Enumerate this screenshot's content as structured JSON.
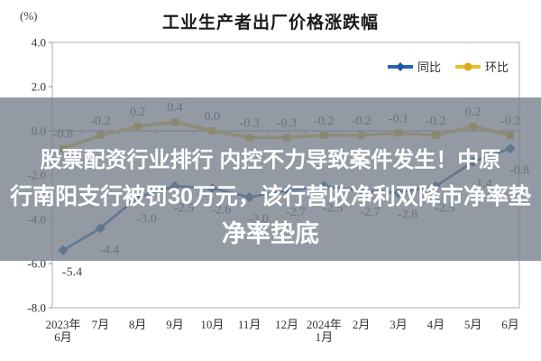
{
  "chart": {
    "title": "工业生产者出厂价格涨跌幅",
    "unit_label": "(%)"
  },
  "chart_data": {
    "type": "line",
    "title": "工业生产者出厂价格涨跌幅",
    "ylabel": "(%)",
    "ylim": [
      -8.0,
      4.0
    ],
    "yticks": [
      4.0,
      2.0,
      0.0,
      -2.0,
      -4.0,
      -6.0,
      -8.0
    ],
    "grid": false,
    "legend_position": "top-right",
    "categories": [
      "2023年6月",
      "7月",
      "8月",
      "9月",
      "10月",
      "11月",
      "12月",
      "2024年1月",
      "2月",
      "3月",
      "4月",
      "5月",
      "6月"
    ],
    "series": [
      {
        "name": "环比",
        "color": "#e9c12e",
        "marker_color": "#d8ab1c",
        "marker": "square",
        "line_width": 3.5,
        "label_position": "above",
        "values": [
          -0.8,
          -0.2,
          0.2,
          0.4,
          0.0,
          -0.3,
          -0.3,
          -0.2,
          -0.2,
          -0.1,
          -0.2,
          0.2,
          -0.2
        ]
      },
      {
        "name": "同比",
        "color": "#2a67ad",
        "marker_color": "#1f5a9e",
        "marker": "diamond",
        "line_width": 2.8,
        "label_position": "below",
        "values": [
          -5.4,
          -4.4,
          -3.0,
          -2.5,
          -2.6,
          -3.0,
          -2.7,
          -2.5,
          -2.7,
          -2.8,
          -2.5,
          -1.4,
          -0.8
        ]
      }
    ],
    "legend": [
      {
        "name": "同比",
        "color": "#2a67ad",
        "marker": "diamond"
      },
      {
        "name": "环比",
        "color": "#e9c12e",
        "marker": "circle"
      }
    ]
  },
  "overlay": {
    "bg_color": "rgba(116,126,139,0.78)",
    "text_color": "#ffffff",
    "lines": [
      "股票配资行业排行 内控不力导致案件发生！中原",
      "行南阳支行被罚30万元，该行营收净利双降市净率垫",
      "净率垫底"
    ]
  }
}
